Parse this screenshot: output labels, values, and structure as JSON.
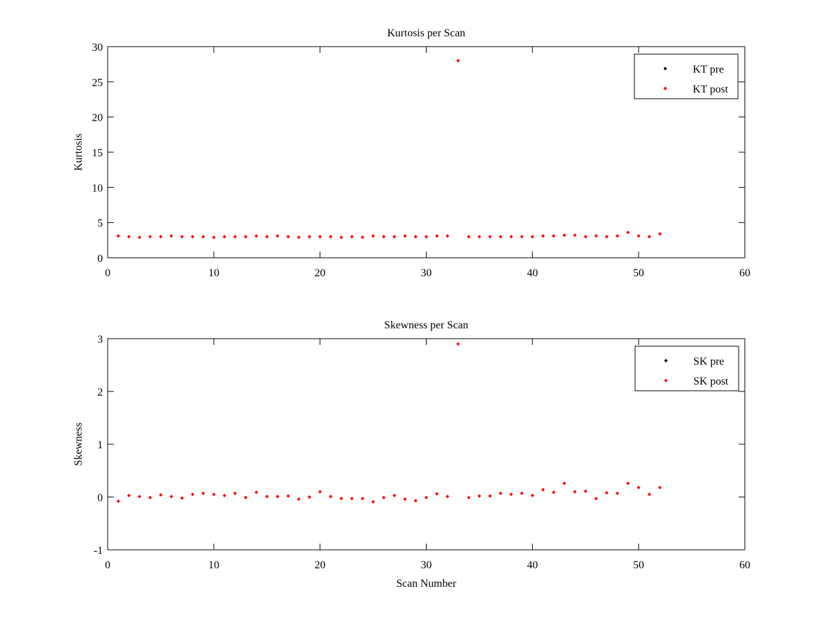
{
  "chart_data": [
    {
      "type": "scatter",
      "title": "Kurtosis per Scan",
      "xlabel": "",
      "ylabel": "Kurtosis",
      "xlim": [
        0,
        60
      ],
      "ylim": [
        0,
        30
      ],
      "xticks": [
        0,
        10,
        20,
        30,
        40,
        50,
        60
      ],
      "yticks": [
        0,
        5,
        10,
        15,
        20,
        25,
        30
      ],
      "legend_position": "top-right",
      "series": [
        {
          "name": "KT pre",
          "color": "#000000",
          "x": [],
          "y": []
        },
        {
          "name": "KT post",
          "color": "#ff0000",
          "x": [
            1,
            2,
            3,
            4,
            5,
            6,
            7,
            8,
            9,
            10,
            11,
            12,
            13,
            14,
            15,
            16,
            17,
            18,
            19,
            20,
            21,
            22,
            23,
            24,
            25,
            26,
            27,
            28,
            29,
            30,
            31,
            32,
            33,
            34,
            35,
            36,
            37,
            38,
            39,
            40,
            41,
            42,
            43,
            44,
            45,
            46,
            47,
            48,
            49,
            50,
            51,
            52
          ],
          "y": [
            3.1,
            3.0,
            2.9,
            3.0,
            3.0,
            3.1,
            3.0,
            3.0,
            3.0,
            2.9,
            3.0,
            3.0,
            3.0,
            3.1,
            3.0,
            3.1,
            3.0,
            2.9,
            3.0,
            3.0,
            3.0,
            2.9,
            3.0,
            2.9,
            3.1,
            3.0,
            3.0,
            3.1,
            3.0,
            3.0,
            3.1,
            3.1,
            28.0,
            3.0,
            3.0,
            3.0,
            3.0,
            3.0,
            3.0,
            3.0,
            3.1,
            3.1,
            3.2,
            3.2,
            3.0,
            3.1,
            3.0,
            3.1,
            3.6,
            3.1,
            3.0,
            3.4
          ]
        }
      ]
    },
    {
      "type": "scatter",
      "title": "Skewness per Scan",
      "xlabel": "Scan Number",
      "ylabel": "Skewness",
      "xlim": [
        0,
        60
      ],
      "ylim": [
        -1,
        3
      ],
      "xticks": [
        0,
        10,
        20,
        30,
        40,
        50,
        60
      ],
      "yticks": [
        -1,
        0,
        1,
        2,
        3
      ],
      "legend_position": "top-right",
      "series": [
        {
          "name": "SK pre",
          "color": "#000000",
          "x": [],
          "y": []
        },
        {
          "name": "SK post",
          "color": "#ff0000",
          "x": [
            1,
            2,
            3,
            4,
            5,
            6,
            7,
            8,
            9,
            10,
            11,
            12,
            13,
            14,
            15,
            16,
            17,
            18,
            19,
            20,
            21,
            22,
            23,
            24,
            25,
            26,
            27,
            28,
            29,
            30,
            31,
            32,
            33,
            34,
            35,
            36,
            37,
            38,
            39,
            40,
            41,
            42,
            43,
            44,
            45,
            46,
            47,
            48,
            49,
            50,
            51,
            52
          ],
          "y": [
            -0.08,
            0.03,
            0.01,
            -0.01,
            0.04,
            0.01,
            -0.02,
            0.05,
            0.07,
            0.05,
            0.03,
            0.07,
            -0.01,
            0.09,
            0.01,
            0.01,
            0.02,
            -0.04,
            0.0,
            0.1,
            0.01,
            -0.03,
            -0.03,
            -0.03,
            -0.09,
            -0.01,
            0.03,
            -0.04,
            -0.07,
            -0.01,
            0.06,
            0.01,
            2.9,
            -0.01,
            0.02,
            0.02,
            0.07,
            0.05,
            0.07,
            0.03,
            0.14,
            0.09,
            0.26,
            0.1,
            0.11,
            -0.03,
            0.08,
            0.07,
            0.26,
            0.18,
            0.05,
            0.18
          ]
        }
      ]
    }
  ]
}
